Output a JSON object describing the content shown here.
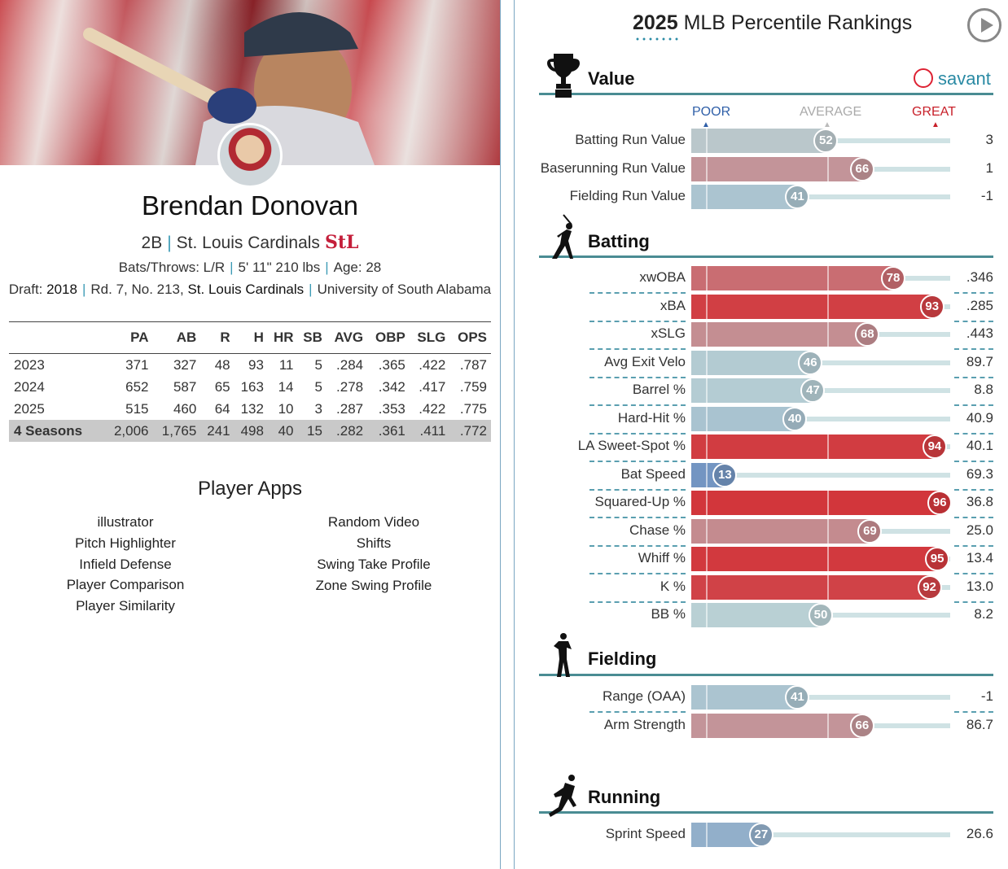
{
  "player": {
    "name": "Brendan Donovan",
    "position": "2B",
    "team": "St. Louis Cardinals",
    "team_logo": "StL",
    "bats_throws_label": "Bats/Throws:",
    "bats_throws": "L/R",
    "height_weight": "5' 11\" 210 lbs",
    "age_label": "Age:",
    "age": "28",
    "draft_label": "Draft:",
    "draft_year": "2018",
    "draft_pick": "Rd. 7, No. 213,",
    "draft_team": "St. Louis Cardinals",
    "school": "University of South Alabama"
  },
  "stats": {
    "headers": [
      "",
      "PA",
      "AB",
      "R",
      "H",
      "HR",
      "SB",
      "AVG",
      "OBP",
      "SLG",
      "OPS"
    ],
    "rows": [
      [
        "2023",
        "371",
        "327",
        "48",
        "93",
        "11",
        "5",
        ".284",
        ".365",
        ".422",
        ".787"
      ],
      [
        "2024",
        "652",
        "587",
        "65",
        "163",
        "14",
        "5",
        ".278",
        ".342",
        ".417",
        ".759"
      ],
      [
        "2025",
        "515",
        "460",
        "64",
        "132",
        "10",
        "3",
        ".287",
        ".353",
        ".422",
        ".775"
      ],
      [
        "4 Seasons",
        "2,006",
        "1,765",
        "241",
        "498",
        "40",
        "15",
        ".282",
        ".361",
        ".411",
        ".772"
      ]
    ]
  },
  "apps": {
    "title": "Player Apps",
    "left": [
      "illustrator",
      "Pitch Highlighter",
      "Infield Defense",
      "Player Comparison",
      "Player Similarity"
    ],
    "right": [
      "Random Video",
      "Shifts",
      "Swing Take Profile",
      "Zone Swing Profile"
    ]
  },
  "rankings": {
    "title_year": "2025",
    "title_rest": "MLB Percentile Rankings",
    "brand": "savant",
    "scale": {
      "poor": "POOR",
      "average": "AVERAGE",
      "great": "GREAT"
    },
    "sections": [
      {
        "name": "Value",
        "icon": "trophy-icon",
        "metrics": [
          {
            "label": "Batting Run Value",
            "pct": 52,
            "value": "3"
          },
          {
            "label": "Baserunning Run Value",
            "pct": 66,
            "value": "1"
          },
          {
            "label": "Fielding Run Value",
            "pct": 41,
            "value": "-1"
          }
        ]
      },
      {
        "name": "Batting",
        "icon": "batter-icon",
        "metrics": [
          {
            "label": "xwOBA",
            "pct": 78,
            "value": ".346"
          },
          {
            "label": "xBA",
            "pct": 93,
            "value": ".285"
          },
          {
            "label": "xSLG",
            "pct": 68,
            "value": ".443"
          },
          {
            "label": "Avg Exit Velo",
            "pct": 46,
            "value": "89.7"
          },
          {
            "label": "Barrel %",
            "pct": 47,
            "value": "8.8"
          },
          {
            "label": "Hard-Hit %",
            "pct": 40,
            "value": "40.9"
          },
          {
            "label": "LA Sweet-Spot %",
            "pct": 94,
            "value": "40.1"
          },
          {
            "label": "Bat Speed",
            "pct": 13,
            "value": "69.3"
          },
          {
            "label": "Squared-Up %",
            "pct": 96,
            "value": "36.8"
          },
          {
            "label": "Chase %",
            "pct": 69,
            "value": "25.0"
          },
          {
            "label": "Whiff %",
            "pct": 95,
            "value": "13.4"
          },
          {
            "label": "K %",
            "pct": 92,
            "value": "13.0"
          },
          {
            "label": "BB %",
            "pct": 50,
            "value": "8.2"
          }
        ]
      },
      {
        "name": "Fielding",
        "icon": "fielder-icon",
        "metrics": [
          {
            "label": "Range (OAA)",
            "pct": 41,
            "value": "-1"
          },
          {
            "label": "Arm Strength",
            "pct": 66,
            "value": "86.7"
          }
        ]
      },
      {
        "name": "Running",
        "icon": "runner-icon",
        "metrics": [
          {
            "label": "Sprint Speed",
            "pct": 27,
            "value": "26.6"
          }
        ]
      }
    ]
  },
  "colors": {
    "accent": "#3c9bb5",
    "section_line": "#4a8c93",
    "poor": "#3b66b3",
    "great": "#d42a2f",
    "average": "#b9d0d4"
  }
}
